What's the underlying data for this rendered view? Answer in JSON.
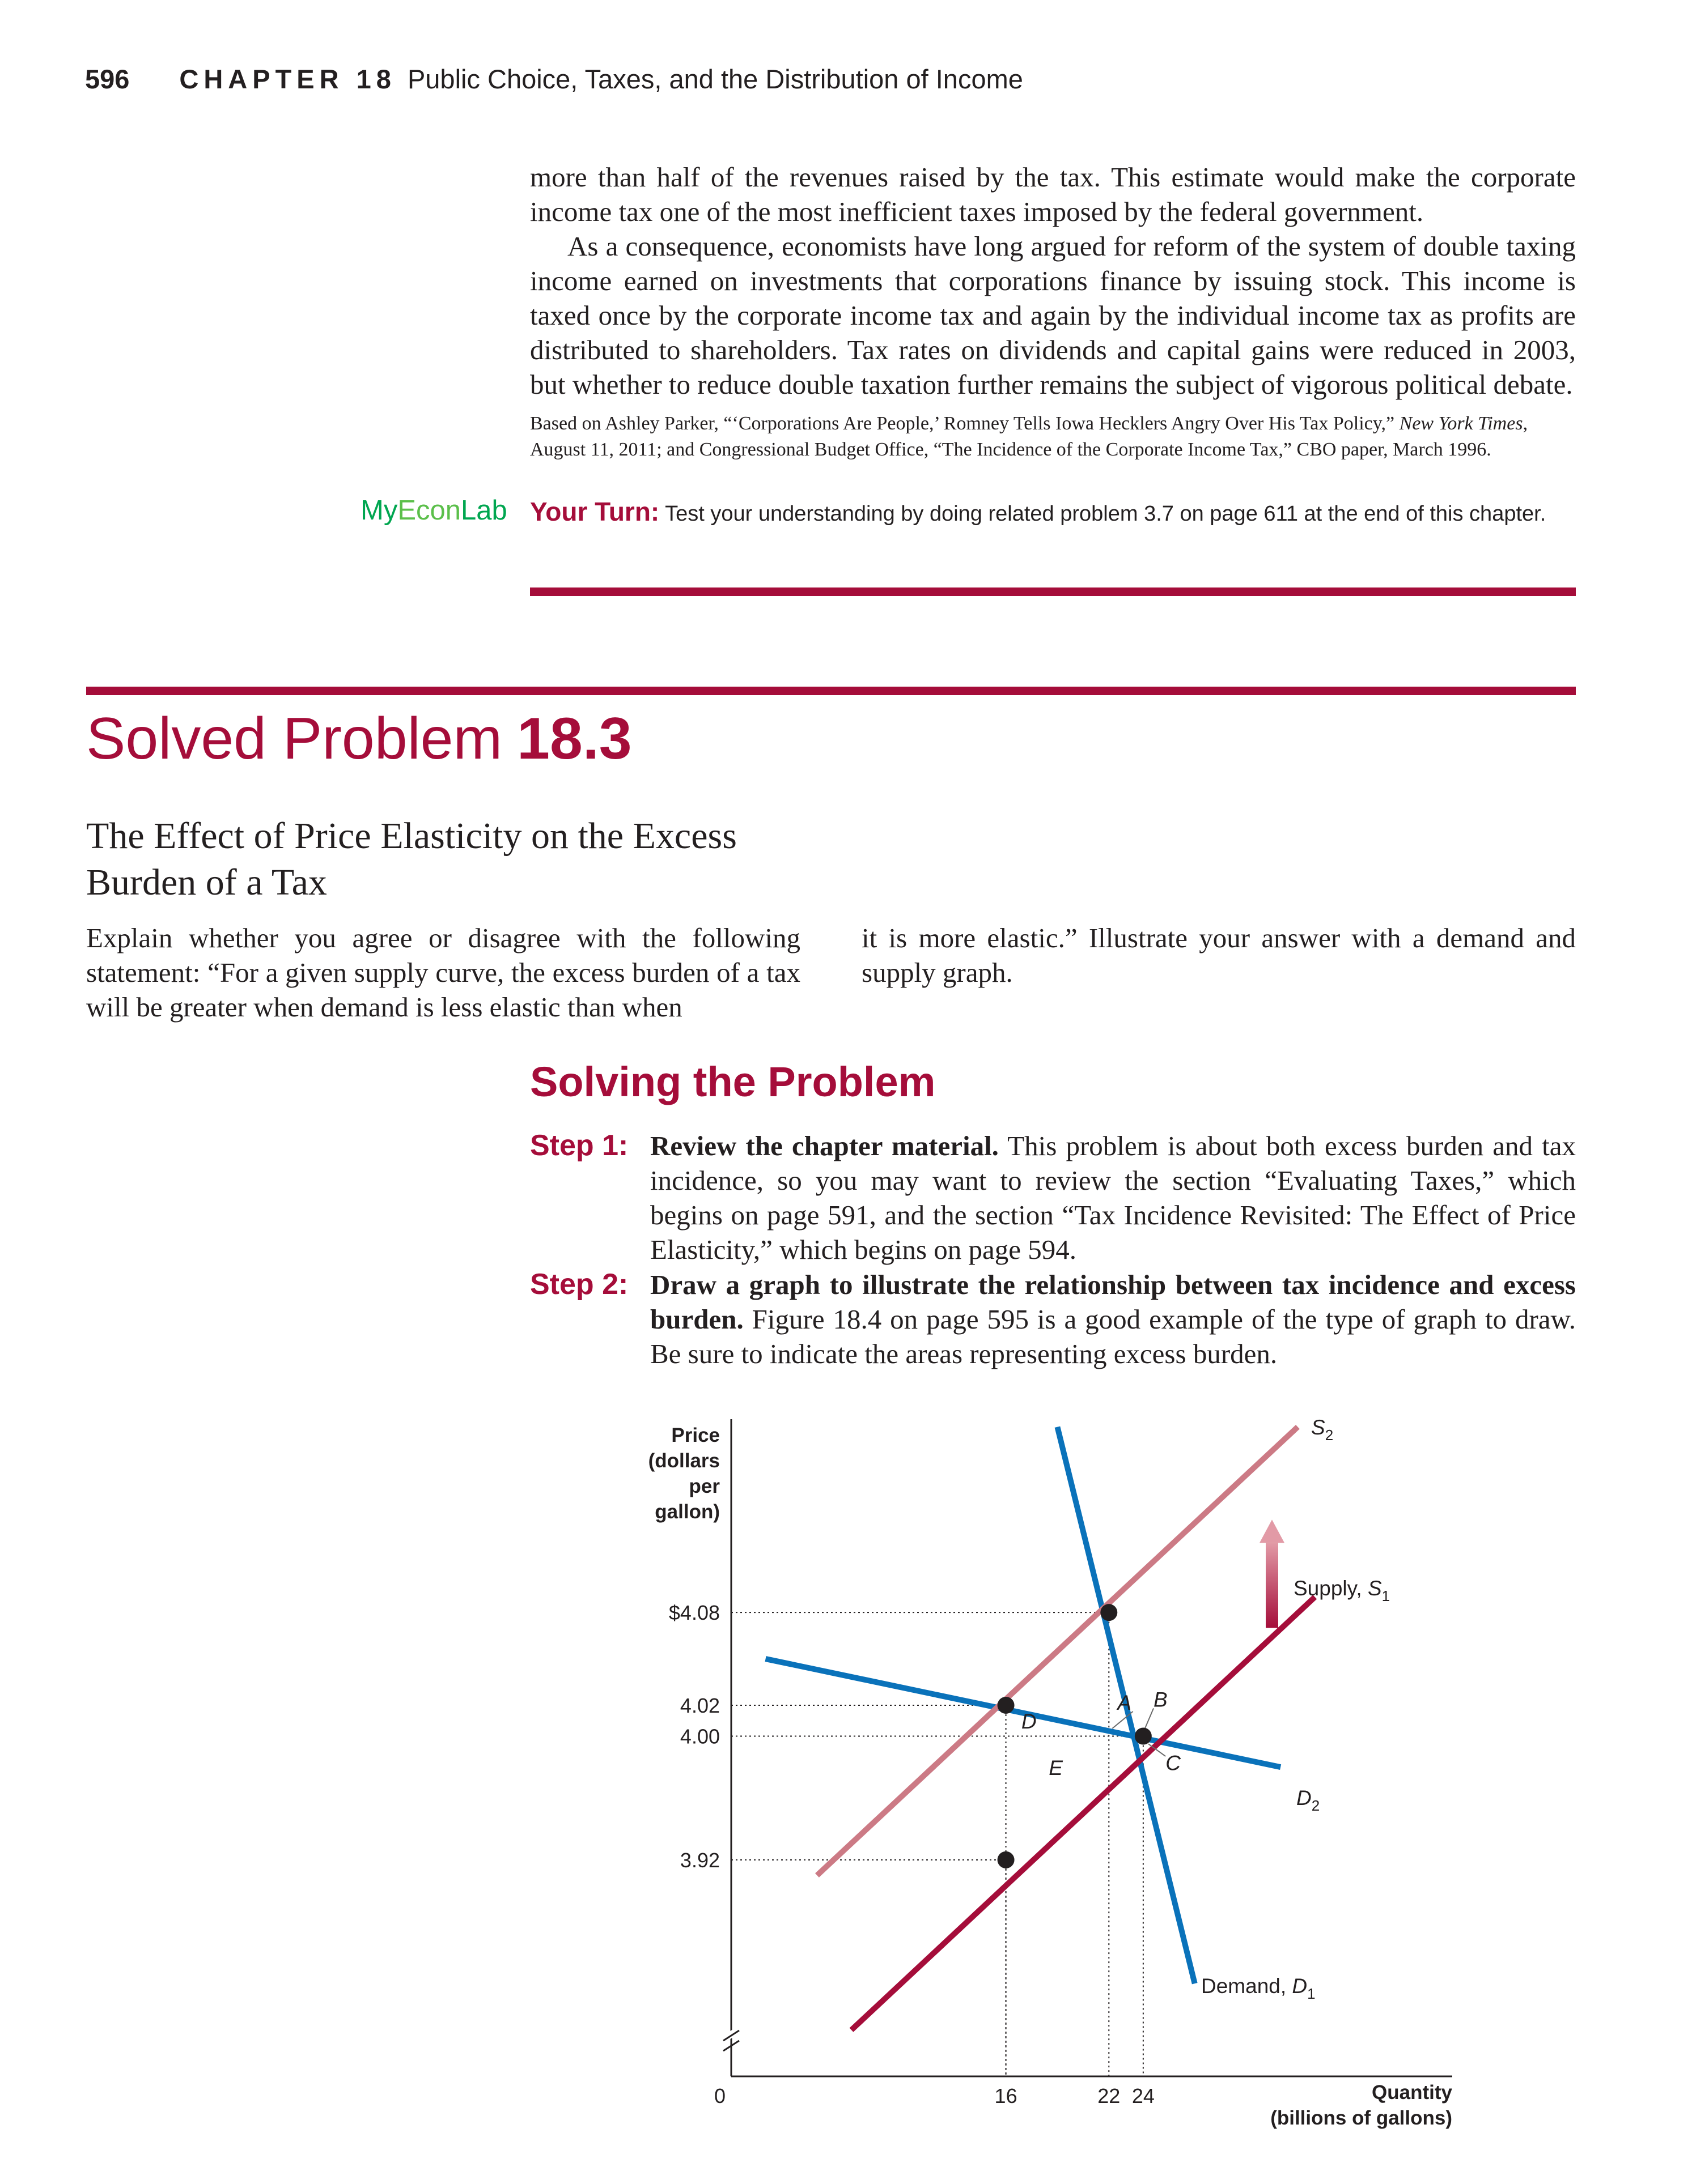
{
  "header": {
    "page_number": "596",
    "chapter_label": "CHAPTER 18",
    "chapter_title": "Public Choice, Taxes, and the Distribution of Income"
  },
  "intro": {
    "para1": "more than half of the revenues raised by the tax. This estimate would make the corporate income tax one of the most inefficient taxes imposed by the federal government.",
    "para2": "As a consequence, economists have long argued for reform of the system of double taxing income earned on investments that corporations finance by issuing stock. This income is taxed once by the corporate income tax and again by the individual income tax as profits are distributed to shareholders. Tax rates on dividends and capital gains were reduced in 2003, but whether to reduce double taxation further remains the subject of vigorous political debate.",
    "source_a": "Based on Ashley Parker, “‘Corporations Are People,’ Romney Tells Iowa Hecklers Angry Over His Tax Policy,” ",
    "source_italic": "New York Times",
    "source_b": ", August 11, 2011; and Congressional Budget Office, “The Incidence of the Corporate Income Tax,” CBO paper, March 1996."
  },
  "myeconlab": {
    "my": "My",
    "econ": "Econ",
    "lab": "Lab"
  },
  "your_turn": {
    "lead": "Your Turn:",
    "text": " Test your understanding by doing related problem 3.7 on page 611 at the end of this chapter."
  },
  "solved_problem": {
    "label": "Solved Problem",
    "number": "18.3",
    "subtitle": "The Effect of Price Elasticity on the Excess Burden of a Tax",
    "statement_left": "Explain whether you agree or disagree with the following statement: “For a given supply curve, the excess burden of a tax will be greater when demand is less elastic than when",
    "statement_right": "it is more elastic.” Illustrate your answer with a demand and supply graph."
  },
  "solving": {
    "heading": "Solving the Problem",
    "steps": [
      {
        "label": "Step 1:",
        "bold": "Review the chapter material.",
        "text": " This problem is about both excess burden and tax incidence, so you may want to review the section “Evaluating Taxes,” which begins on page 591, and the section “Tax Incidence Revisited: The Effect of Price Elasticity,” which begins on page 594."
      },
      {
        "label": "Step 2:",
        "bold": "Draw a graph to illustrate the relationship between tax incidence and excess burden.",
        "text": " Figure 18.4 on page 595 is a good example of the type of graph to draw. Be sure to indicate the areas representing excess burden."
      }
    ]
  },
  "chart_data": {
    "type": "line",
    "ylabel_lines": [
      "Price",
      "(dollars",
      "per",
      "gallon)"
    ],
    "xlabel_lines": [
      "Quantity",
      "(billions of gallons)"
    ],
    "origin_label": "0",
    "x_ticks": [
      {
        "value": 16,
        "label": "16"
      },
      {
        "value": 22,
        "label": "22"
      },
      {
        "value": 24,
        "label": "24"
      }
    ],
    "y_ticks": [
      {
        "value": 4.08,
        "label": "$4.08"
      },
      {
        "value": 4.02,
        "label": "4.02"
      },
      {
        "value": 4.0,
        "label": "4.00"
      },
      {
        "value": 3.92,
        "label": "3.92"
      }
    ],
    "xlim": [
      0,
      42
    ],
    "ylim": [
      3.78,
      4.205
    ],
    "colors": {
      "demand": "#0a72ba",
      "supply": "#a50d3a",
      "supply_taxed": "#cc7a85",
      "arrow": "#a50d3a"
    },
    "series": [
      {
        "name": "Demand, D1",
        "key": "D1",
        "color": "#0a72ba",
        "points": [
          [
            19.0,
            4.2
          ],
          [
            27.0,
            3.84
          ]
        ]
      },
      {
        "name": "D2",
        "key": "D2",
        "color": "#0a72ba",
        "points": [
          [
            2.0,
            4.05
          ],
          [
            32.0,
            3.98
          ]
        ]
      },
      {
        "name": "Supply, S1",
        "key": "S1",
        "color": "#a50d3a",
        "points": [
          [
            7.0,
            3.81
          ],
          [
            34.0,
            4.09
          ]
        ]
      },
      {
        "name": "S2",
        "key": "S2",
        "color": "#cc7a85",
        "points": [
          [
            5.0,
            3.91
          ],
          [
            33.0,
            4.2
          ]
        ]
      }
    ],
    "points": [
      {
        "x": 22,
        "y": 4.08
      },
      {
        "x": 16,
        "y": 4.02
      },
      {
        "x": 24,
        "y": 4.0
      },
      {
        "x": 16,
        "y": 3.92
      }
    ],
    "area_labels": [
      "A",
      "B",
      "C",
      "D",
      "E"
    ],
    "curve_labels": {
      "S2": "S",
      "S2_sub": "2",
      "S1": "Supply, S",
      "S1_sub": "1",
      "D2": "D",
      "D2_sub": "2",
      "D1": "Demand, D",
      "D1_sub": "1"
    }
  }
}
